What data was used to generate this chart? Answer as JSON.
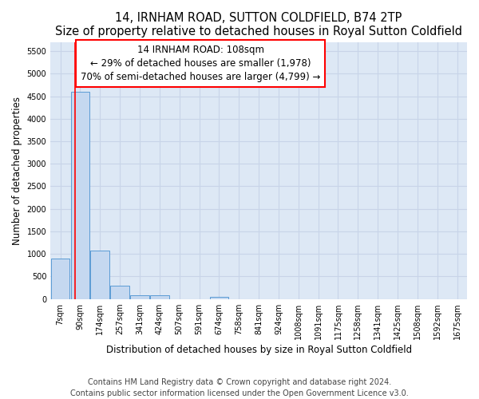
{
  "title": "14, IRNHAM ROAD, SUTTON COLDFIELD, B74 2TP",
  "subtitle": "Size of property relative to detached houses in Royal Sutton Coldfield",
  "xlabel": "Distribution of detached houses by size in Royal Sutton Coldfield",
  "ylabel": "Number of detached properties",
  "footnote1": "Contains HM Land Registry data © Crown copyright and database right 2024.",
  "footnote2": "Contains public sector information licensed under the Open Government Licence v3.0.",
  "categories": [
    "7sqm",
    "90sqm",
    "174sqm",
    "257sqm",
    "341sqm",
    "424sqm",
    "507sqm",
    "591sqm",
    "674sqm",
    "758sqm",
    "841sqm",
    "924sqm",
    "1008sqm",
    "1091sqm",
    "1175sqm",
    "1258sqm",
    "1341sqm",
    "1425sqm",
    "1508sqm",
    "1592sqm",
    "1675sqm"
  ],
  "values": [
    900,
    4600,
    1080,
    300,
    90,
    90,
    0,
    0,
    55,
    0,
    0,
    0,
    0,
    0,
    0,
    0,
    0,
    0,
    0,
    0,
    0
  ],
  "bar_color": "#c5d8f0",
  "bar_edge_color": "#5b9bd5",
  "annotation_box_text": [
    "14 IRNHAM ROAD: 108sqm",
    "← 29% of detached houses are smaller (1,978)",
    "70% of semi-detached houses are larger (4,799) →"
  ],
  "annotation_box_color": "white",
  "annotation_box_edge_color": "red",
  "vline_color": "red",
  "ylim": [
    0,
    5700
  ],
  "yticks": [
    0,
    500,
    1000,
    1500,
    2000,
    2500,
    3000,
    3500,
    4000,
    4500,
    5000,
    5500
  ],
  "bg_color": "white",
  "grid_color": "#c8d4e8",
  "title_fontsize": 10.5,
  "subtitle_fontsize": 9.5,
  "axis_label_fontsize": 8.5,
  "tick_fontsize": 7,
  "annotation_fontsize": 8.5,
  "footnote_fontsize": 7
}
